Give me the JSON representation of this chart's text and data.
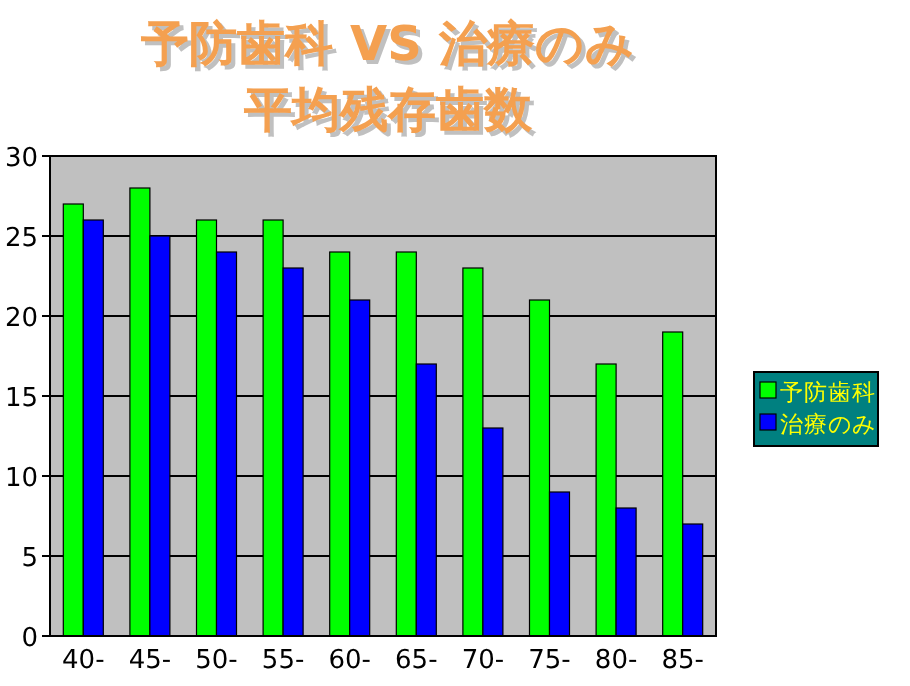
{
  "chart_data": {
    "type": "bar",
    "title": "予防歯科 VS 治療のみ",
    "subtitle": "平均残存歯数",
    "categories": [
      "40-",
      "45-",
      "50-",
      "55-",
      "60-",
      "65-",
      "70-",
      "75-",
      "80-",
      "85-"
    ],
    "series": [
      {
        "name": "予防歯科",
        "color": "#00ff00",
        "values": [
          27,
          28,
          26,
          26,
          24,
          24,
          23,
          21,
          17,
          19
        ]
      },
      {
        "name": "治療のみ",
        "color": "#0000ff",
        "values": [
          26,
          25,
          24,
          23,
          21,
          17,
          13,
          9,
          8,
          7
        ]
      }
    ],
    "ylim": [
      0,
      30
    ],
    "yticks": [
      0,
      5,
      10,
      15,
      20,
      25,
      30
    ],
    "grid": "y",
    "legend": "right"
  }
}
